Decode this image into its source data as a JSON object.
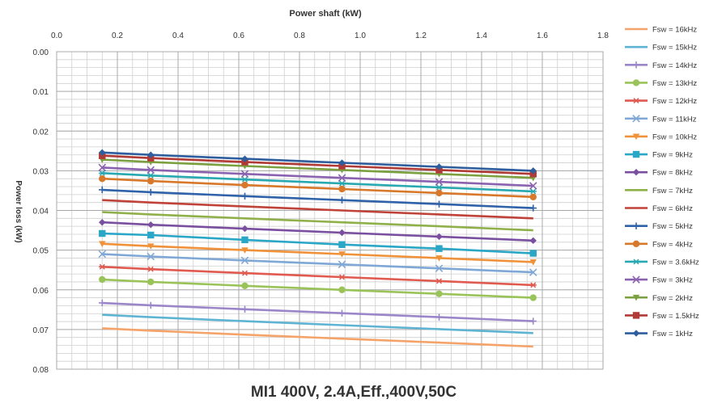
{
  "chart_data": {
    "type": "line",
    "title": "MI1 400V, 2.4A,Eff.,400V,50C",
    "xlabel": "Power shaft (kW)",
    "ylabel": "Power loss (kW)",
    "x_ticks": [
      "0.0",
      "0.2",
      "0.4",
      "0.6",
      "0.8",
      "1.0",
      "1.2",
      "1.4",
      "1.6",
      "1.8"
    ],
    "y_ticks": [
      "0.00",
      "0.01",
      "0.02",
      "0.03",
      "0.04",
      "0.05",
      "0.06",
      "0.07",
      "0.08"
    ],
    "xlim": [
      0,
      1.8
    ],
    "ylim": [
      0,
      0.08
    ],
    "x_axis_position": "top",
    "y_axis_inverted": true,
    "grid": true,
    "legend_position": "right",
    "x": [
      0.15,
      0.31,
      0.62,
      0.94,
      1.26,
      1.57
    ],
    "series": [
      {
        "name": "Fsw = 16kHz",
        "color": "#f4a46a",
        "marker": "none",
        "values": [
          0.0697,
          0.0703,
          0.0713,
          0.0723,
          0.0733,
          0.0743
        ]
      },
      {
        "name": "Fsw = 15kHz",
        "color": "#5fb3d3",
        "marker": "none",
        "values": [
          0.0663,
          0.0669,
          0.0679,
          0.0689,
          0.0699,
          0.0709
        ]
      },
      {
        "name": "Fsw = 14kHz",
        "color": "#9a86c8",
        "marker": "plus",
        "values": [
          0.0633,
          0.0639,
          0.0649,
          0.0659,
          0.0669,
          0.0679
        ]
      },
      {
        "name": "Fsw = 13kHz",
        "color": "#9ac45a",
        "marker": "circle",
        "values": [
          0.0574,
          0.058,
          0.059,
          0.06,
          0.061,
          0.062
        ]
      },
      {
        "name": "Fsw = 12kHz",
        "color": "#e05a50",
        "marker": "star",
        "values": [
          0.0542,
          0.0548,
          0.0558,
          0.0568,
          0.0578,
          0.0588
        ]
      },
      {
        "name": "Fsw = 11kHz",
        "color": "#7fa8d6",
        "marker": "x",
        "values": [
          0.051,
          0.0516,
          0.0526,
          0.0536,
          0.0546,
          0.0556
        ]
      },
      {
        "name": "Fsw = 10kHz",
        "color": "#f0923a",
        "marker": "triangle-down",
        "values": [
          0.0484,
          0.049,
          0.05,
          0.051,
          0.052,
          0.053
        ]
      },
      {
        "name": "Fsw = 9kHz",
        "color": "#2aa6c6",
        "marker": "square",
        "values": [
          0.0458,
          0.0462,
          0.0474,
          0.0486,
          0.0496,
          0.0508
        ]
      },
      {
        "name": "Fsw = 8kHz",
        "color": "#7a4fa0",
        "marker": "diamond",
        "values": [
          0.043,
          0.0436,
          0.0446,
          0.0456,
          0.0466,
          0.0476
        ]
      },
      {
        "name": "Fsw = 7kHz",
        "color": "#8fb04a",
        "marker": "none",
        "values": [
          0.0404,
          0.041,
          0.042,
          0.043,
          0.044,
          0.045
        ]
      },
      {
        "name": "Fsw = 6kHz",
        "color": "#c0433a",
        "marker": "none",
        "values": [
          0.0374,
          0.038,
          0.039,
          0.04,
          0.041,
          0.042
        ]
      },
      {
        "name": "Fsw = 5kHz",
        "color": "#2f62a8",
        "marker": "plus",
        "values": [
          0.0348,
          0.0354,
          0.0364,
          0.0374,
          0.0384,
          0.0394
        ]
      },
      {
        "name": "Fsw = 4kHz",
        "color": "#d8782a",
        "marker": "circle",
        "values": [
          0.032,
          0.0326,
          0.0336,
          0.0346,
          0.0356,
          0.0366
        ]
      },
      {
        "name": "Fsw = 3.6kHz",
        "color": "#28a8b0",
        "marker": "star",
        "values": [
          0.0306,
          0.0312,
          0.0322,
          0.0332,
          0.0342,
          0.0352
        ]
      },
      {
        "name": "Fsw = 3kHz",
        "color": "#8a62b0",
        "marker": "x",
        "values": [
          0.0292,
          0.0298,
          0.0308,
          0.0318,
          0.0328,
          0.0338
        ]
      },
      {
        "name": "Fsw = 2kHz",
        "color": "#7aa040",
        "marker": "triangle-down",
        "values": [
          0.0272,
          0.0278,
          0.0288,
          0.0298,
          0.0308,
          0.0318
        ]
      },
      {
        "name": "Fsw = 1.5kHz",
        "color": "#b03a36",
        "marker": "square",
        "values": [
          0.0262,
          0.0268,
          0.0278,
          0.0288,
          0.0298,
          0.0308
        ]
      },
      {
        "name": "Fsw = 1kHz",
        "color": "#2e5e9e",
        "marker": "diamond",
        "values": [
          0.0254,
          0.026,
          0.027,
          0.028,
          0.029,
          0.03
        ]
      }
    ]
  }
}
